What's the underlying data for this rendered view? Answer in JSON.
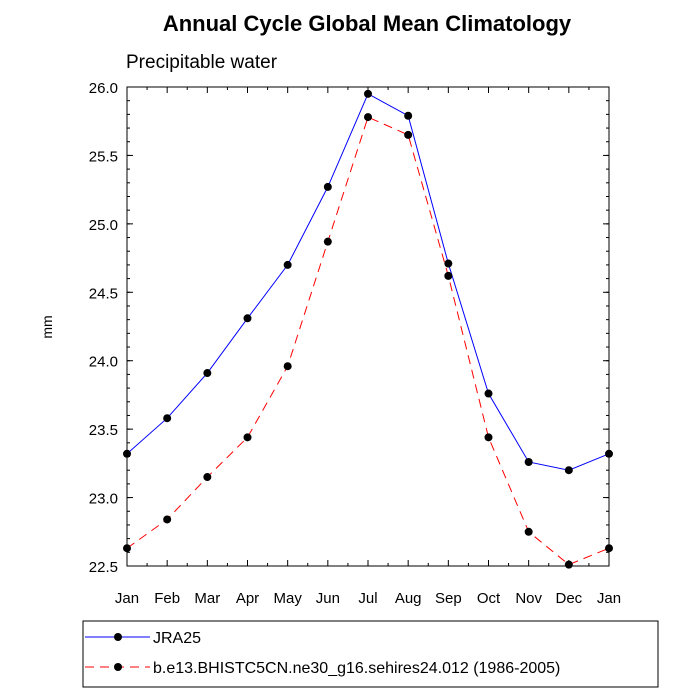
{
  "chart_data": {
    "type": "line",
    "title": "Annual Cycle Global Mean Climatology",
    "subtitle": "Precipitable water",
    "xlabel": "",
    "ylabel": "mm",
    "categories": [
      "Jan",
      "Feb",
      "Mar",
      "Apr",
      "May",
      "Jun",
      "Jul",
      "Aug",
      "Sep",
      "Oct",
      "Nov",
      "Dec",
      "Jan"
    ],
    "yticks": [
      "22.5",
      "23.0",
      "23.5",
      "24.0",
      "24.5",
      "25.0",
      "25.5",
      "26.0"
    ],
    "ylim": [
      22.5,
      26.0
    ],
    "grid": false,
    "legend_position": "bottom",
    "series": [
      {
        "name": "JRA25",
        "color": "#0000ff",
        "line_style": "solid",
        "marker": "filled-circle",
        "values": [
          23.32,
          23.58,
          23.91,
          24.31,
          24.7,
          25.27,
          25.95,
          25.79,
          24.71,
          23.76,
          23.26,
          23.2,
          23.32
        ]
      },
      {
        "name": "b.e13.BHISTC5CN.ne30_g16.sehires24.012 (1986-2005)",
        "color": "#ff0000",
        "line_style": "dashed",
        "marker": "filled-circle",
        "values": [
          22.63,
          22.84,
          23.15,
          23.44,
          23.96,
          24.87,
          25.78,
          25.65,
          24.62,
          23.44,
          22.75,
          22.51,
          22.63
        ]
      }
    ]
  }
}
